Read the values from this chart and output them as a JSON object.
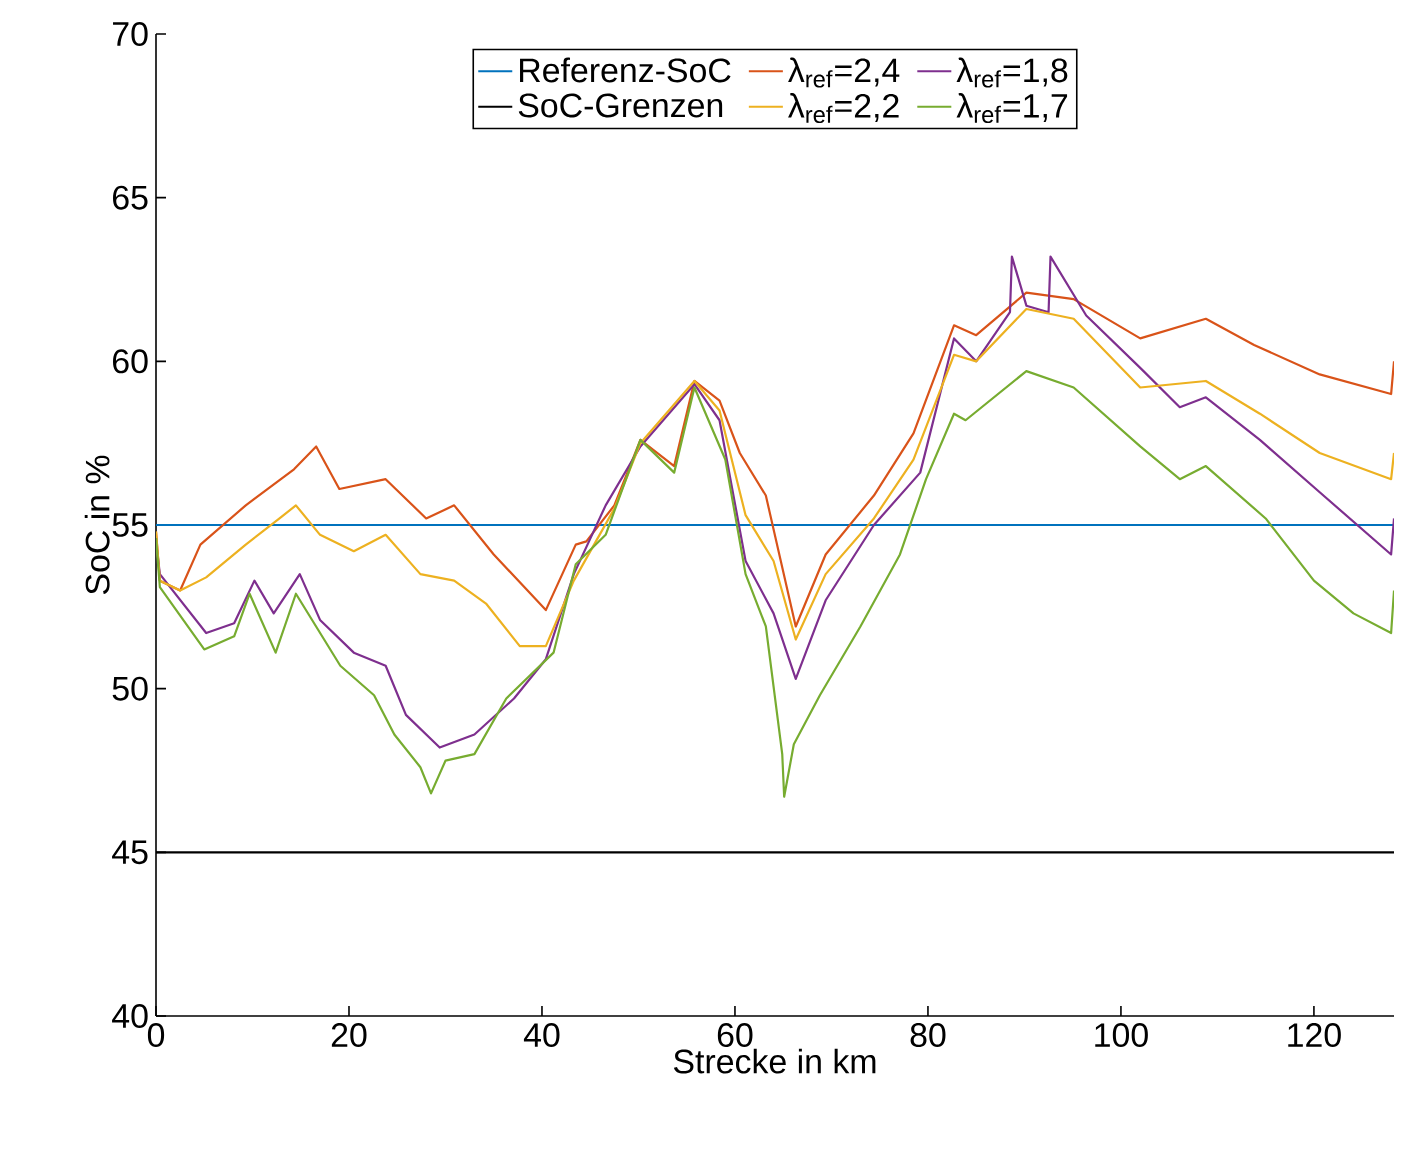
{
  "chart_data": {
    "type": "line",
    "xlabel": "Strecke in km",
    "ylabel": "SoC in %",
    "xlim": [
      0,
      128.3
    ],
    "ylim": [
      40,
      70
    ],
    "xticks": [
      0,
      20,
      40,
      60,
      80,
      100,
      120
    ],
    "yticks": [
      40,
      45,
      50,
      55,
      60,
      65,
      70
    ],
    "grid": false,
    "legend": "top",
    "marker": "none",
    "line_style": "solid",
    "series": [
      {
        "name": "Referenz-SoC",
        "color": "#0072bd",
        "x": [
          0,
          128.3
        ],
        "values": [
          55,
          55
        ]
      },
      {
        "name": "λ$_{ref}$=2,4",
        "color": "#d95319",
        "x": [
          0,
          0.4,
          2.5,
          4.6,
          9.3,
          14.3,
          16.6,
          19,
          23.8,
          28,
          30.9,
          35,
          40.4,
          43.5,
          44.6,
          47.5,
          50.2,
          53.7,
          55.8,
          58.4,
          60.5,
          63.2,
          66.3,
          69.4,
          74.4,
          78.5,
          82.7,
          85,
          90.2,
          95.1,
          102,
          108.8,
          113.8,
          120.6,
          128,
          128.3
        ],
        "values": [
          54.8,
          53.3,
          53.0,
          54.4,
          55.6,
          56.7,
          57.4,
          56.1,
          56.4,
          55.2,
          55.6,
          54.1,
          52.4,
          54.4,
          54.5,
          55.6,
          57.6,
          56.8,
          59.4,
          58.8,
          57.2,
          55.9,
          51.9,
          54.1,
          55.9,
          57.8,
          61.1,
          60.8,
          62.1,
          61.9,
          60.7,
          61.3,
          60.5,
          59.6,
          59.0,
          60.0
        ]
      },
      {
        "name": "λ$_{ref}$=1,8",
        "color": "#7e2f8e",
        "x": [
          0,
          0.4,
          5.2,
          8.1,
          10.2,
          12.2,
          14.9,
          17,
          20.5,
          23.8,
          25.9,
          29.4,
          33,
          37.1,
          40.4,
          43.3,
          46.6,
          50.2,
          55.8,
          58.4,
          61.1,
          64,
          66.3,
          69.4,
          74.4,
          79.2,
          82.7,
          85,
          88.5,
          88.7,
          90.2,
          92.5,
          92.7,
          96.4,
          102,
          106.1,
          108.8,
          114.4,
          120.6,
          128,
          128.3
        ],
        "values": [
          54.5,
          53.5,
          51.7,
          52.0,
          53.3,
          52.3,
          53.5,
          52.1,
          51.1,
          50.7,
          49.2,
          48.2,
          48.6,
          49.7,
          50.9,
          53.5,
          55.6,
          57.4,
          59.3,
          58.2,
          53.9,
          52.3,
          50.3,
          52.7,
          55.0,
          56.6,
          60.7,
          60.0,
          61.5,
          63.2,
          61.7,
          61.5,
          63.2,
          61.4,
          59.8,
          58.6,
          58.9,
          57.6,
          56.0,
          54.1,
          55.2
        ]
      },
      {
        "name": "SoC-Grenzen",
        "color": "#000000",
        "x": [
          0,
          128.3
        ],
        "values": [
          45,
          45
        ]
      },
      {
        "name": "λ$_{ref}$=2,2",
        "color": "#edb120",
        "x": [
          0,
          0.4,
          2.5,
          5.2,
          9.3,
          12.8,
          14.5,
          17,
          20.5,
          23.8,
          27.4,
          30.9,
          34.2,
          37.7,
          40.4,
          43.3,
          47.5,
          50.2,
          55.8,
          58.4,
          61.1,
          64,
          66.3,
          69.4,
          74.4,
          78.5,
          82.7,
          85,
          90.2,
          95.1,
          102,
          108.8,
          114.4,
          120.6,
          128,
          128.3
        ],
        "values": [
          54.8,
          53.3,
          53.0,
          53.4,
          54.4,
          55.2,
          55.6,
          54.7,
          54.2,
          54.7,
          53.5,
          53.3,
          52.6,
          51.3,
          51.3,
          53.3,
          55.5,
          57.5,
          59.4,
          58.5,
          55.3,
          53.9,
          51.5,
          53.5,
          55.2,
          57.0,
          60.2,
          60.0,
          61.6,
          61.3,
          59.2,
          59.4,
          58.4,
          57.2,
          56.4,
          57.2
        ]
      },
      {
        "name": "λ$_{ref}$=1,7",
        "color": "#77ac30",
        "x": [
          0,
          0.4,
          5,
          8.1,
          9.7,
          12.4,
          14.5,
          19.1,
          22.6,
          24.7,
          27.4,
          28.5,
          30,
          33,
          36.3,
          41.2,
          43.5,
          46.6,
          50.2,
          53.7,
          55.8,
          59,
          61.1,
          63.2,
          64.9,
          65.1,
          66.1,
          68.8,
          73,
          77.1,
          79.8,
          82.7,
          83.9,
          90.2,
          95.1,
          102,
          106.1,
          108.8,
          115,
          120,
          124.1,
          128,
          128.3
        ],
        "values": [
          54.6,
          53.1,
          51.2,
          51.6,
          52.9,
          51.1,
          52.9,
          50.7,
          49.8,
          48.6,
          47.6,
          46.8,
          47.8,
          48.0,
          49.7,
          51.1,
          53.8,
          54.7,
          57.6,
          56.6,
          59.2,
          57.0,
          53.5,
          51.9,
          48.0,
          46.7,
          48.3,
          49.8,
          51.9,
          54.1,
          56.4,
          58.4,
          58.2,
          59.7,
          59.2,
          57.4,
          56.4,
          56.8,
          55.2,
          53.3,
          52.3,
          51.7,
          53.0
        ]
      }
    ]
  }
}
